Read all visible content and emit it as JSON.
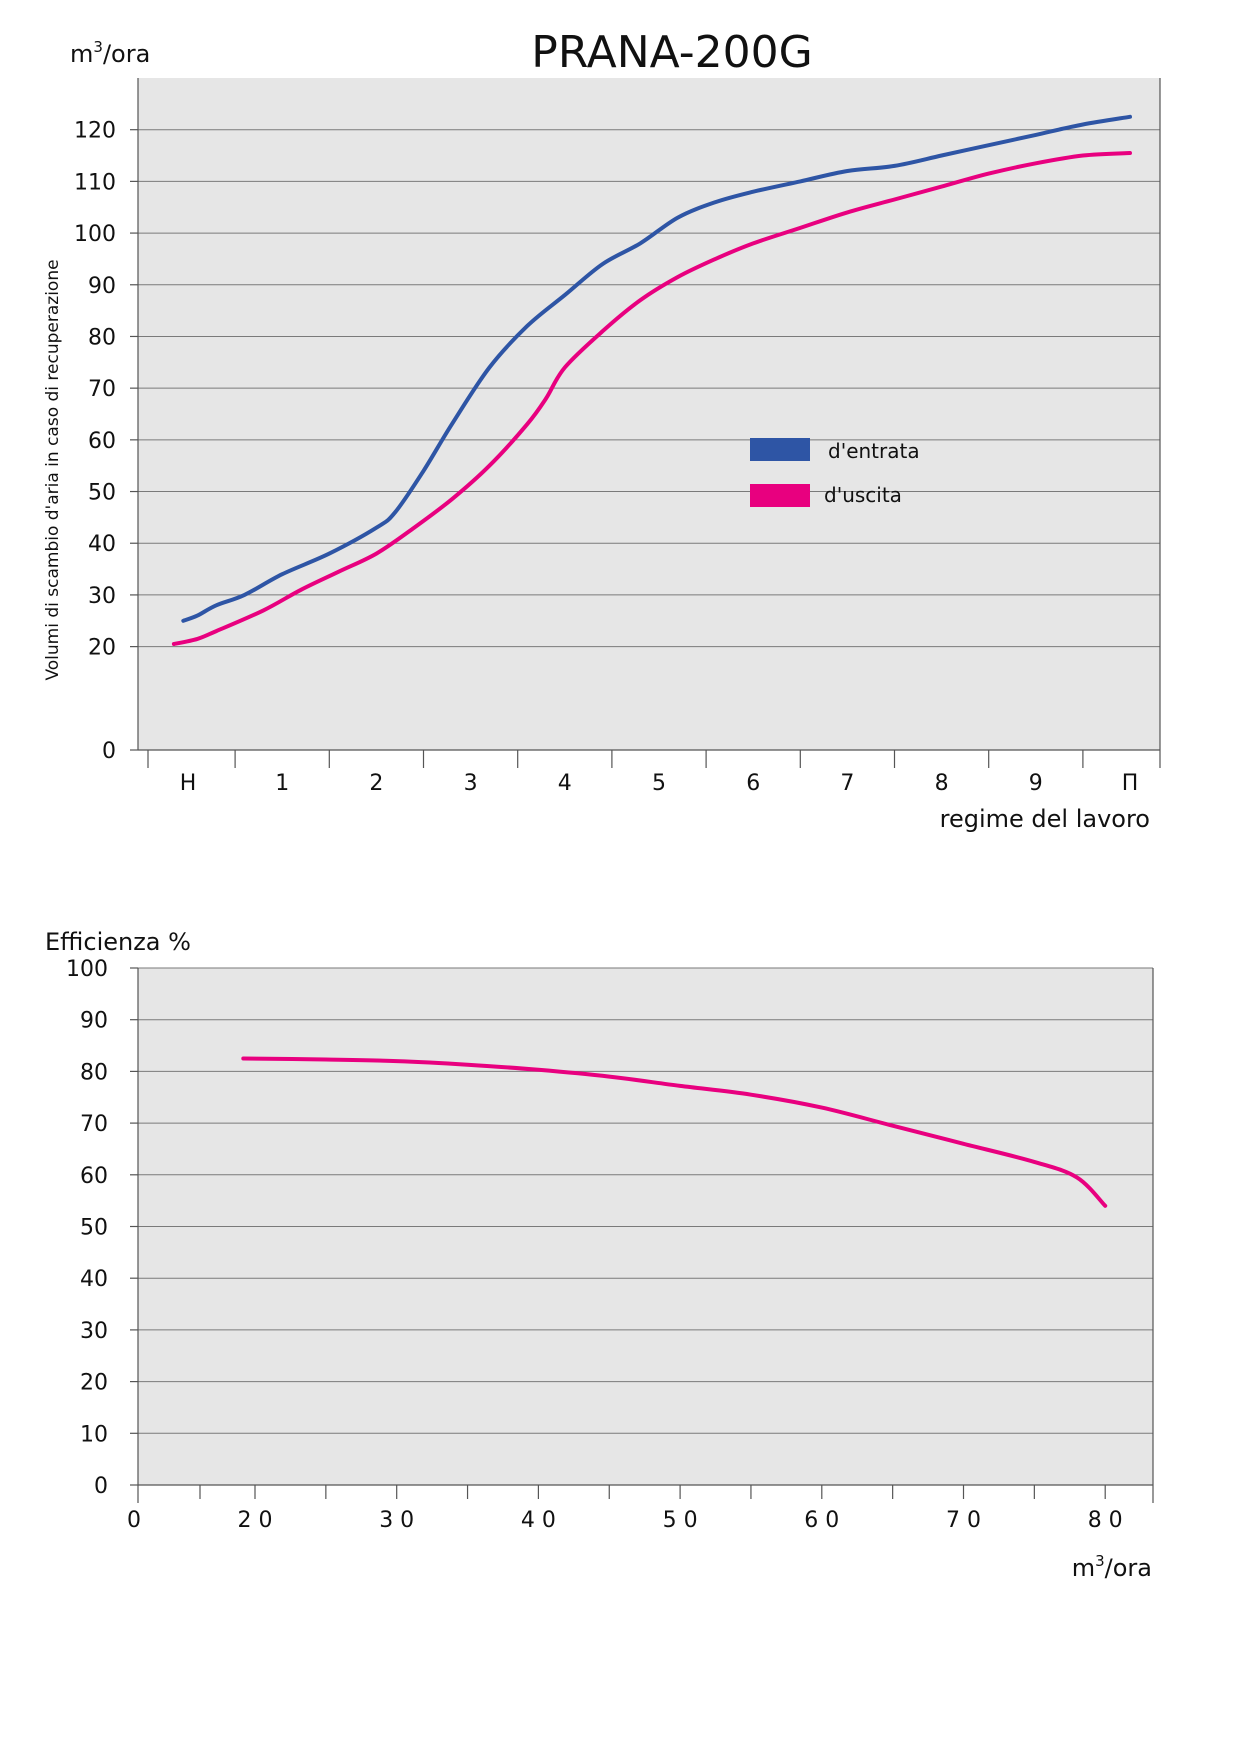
{
  "title": "PRANA-200G",
  "colors": {
    "plot_bg": "#e6e6e6",
    "grid": "#7a7a7a",
    "entrata": "#2e55a5",
    "uscita": "#e8007f"
  },
  "chart_data": [
    {
      "type": "line",
      "title": "PRANA-200G",
      "unit_label_base": "m",
      "unit_label_sup": "3",
      "unit_label_tail": "/ora",
      "ylabel": "Volumi di scambio d'aria in caso di recuperazione",
      "xlabel": "regime del lavoro",
      "categories": [
        "Н",
        "1",
        "2",
        "3",
        "4",
        "5",
        "6",
        "7",
        "8",
        "9",
        "П"
      ],
      "yticks": [
        0,
        20,
        30,
        40,
        50,
        60,
        70,
        80,
        90,
        100,
        110,
        120
      ],
      "ylim": [
        0,
        130
      ],
      "grid": true,
      "legend_position": "right-center",
      "series": [
        {
          "name": "d'entrata",
          "color": "#2e55a5",
          "x": [
            -0.05,
            0.1,
            0.3,
            0.6,
            1.0,
            1.5,
            2.0,
            2.2,
            2.5,
            2.8,
            3.2,
            3.6,
            4.0,
            4.4,
            4.8,
            5.2,
            5.6,
            6.0,
            6.5,
            7.0,
            7.5,
            8.0,
            8.5,
            9.0,
            9.5,
            10.0
          ],
          "y": [
            25,
            26,
            28,
            30,
            34,
            38,
            43,
            46,
            54,
            63,
            74,
            82,
            88,
            94,
            98,
            103,
            106,
            108,
            110,
            112,
            113,
            115,
            117,
            119,
            121,
            122.5
          ]
        },
        {
          "name": "d'uscita",
          "color": "#e8007f",
          "x": [
            -0.15,
            0.1,
            0.3,
            0.8,
            1.2,
            1.6,
            2.0,
            2.4,
            2.8,
            3.2,
            3.6,
            3.8,
            4.0,
            4.4,
            4.8,
            5.2,
            5.6,
            6.0,
            6.5,
            7.0,
            7.5,
            8.0,
            8.5,
            9.0,
            9.5,
            10.0
          ],
          "y": [
            20.5,
            21.5,
            23,
            27,
            31,
            34.5,
            38,
            43,
            48.5,
            55,
            63,
            68,
            74,
            81,
            87,
            91.5,
            95,
            98,
            101,
            104,
            106.5,
            109,
            111.5,
            113.5,
            115,
            115.5
          ]
        }
      ]
    },
    {
      "type": "line",
      "ylabel": "Efficienza %",
      "unit_label_base": "m",
      "unit_label_sup": "3",
      "unit_label_tail": "/ora",
      "xticks": [
        0,
        20,
        30,
        40,
        50,
        60,
        70,
        80
      ],
      "xtick_labels": [
        "0",
        "2 0",
        "3 0",
        "4 0",
        "5 0",
        "6 0",
        "7 0",
        "8 0"
      ],
      "yticks": [
        0,
        10,
        20,
        30,
        40,
        50,
        60,
        70,
        80,
        90,
        100
      ],
      "ylim": [
        0,
        100
      ],
      "grid": true,
      "series": [
        {
          "color": "#e8007f",
          "x": [
            18,
            25,
            30,
            35,
            40,
            45,
            50,
            55,
            60,
            65,
            70,
            75,
            78,
            80
          ],
          "y": [
            82.5,
            82.3,
            82.0,
            81.3,
            80.3,
            79.0,
            77.2,
            75.5,
            73.0,
            69.5,
            66.0,
            62.5,
            59.5,
            54.0
          ]
        }
      ]
    }
  ]
}
